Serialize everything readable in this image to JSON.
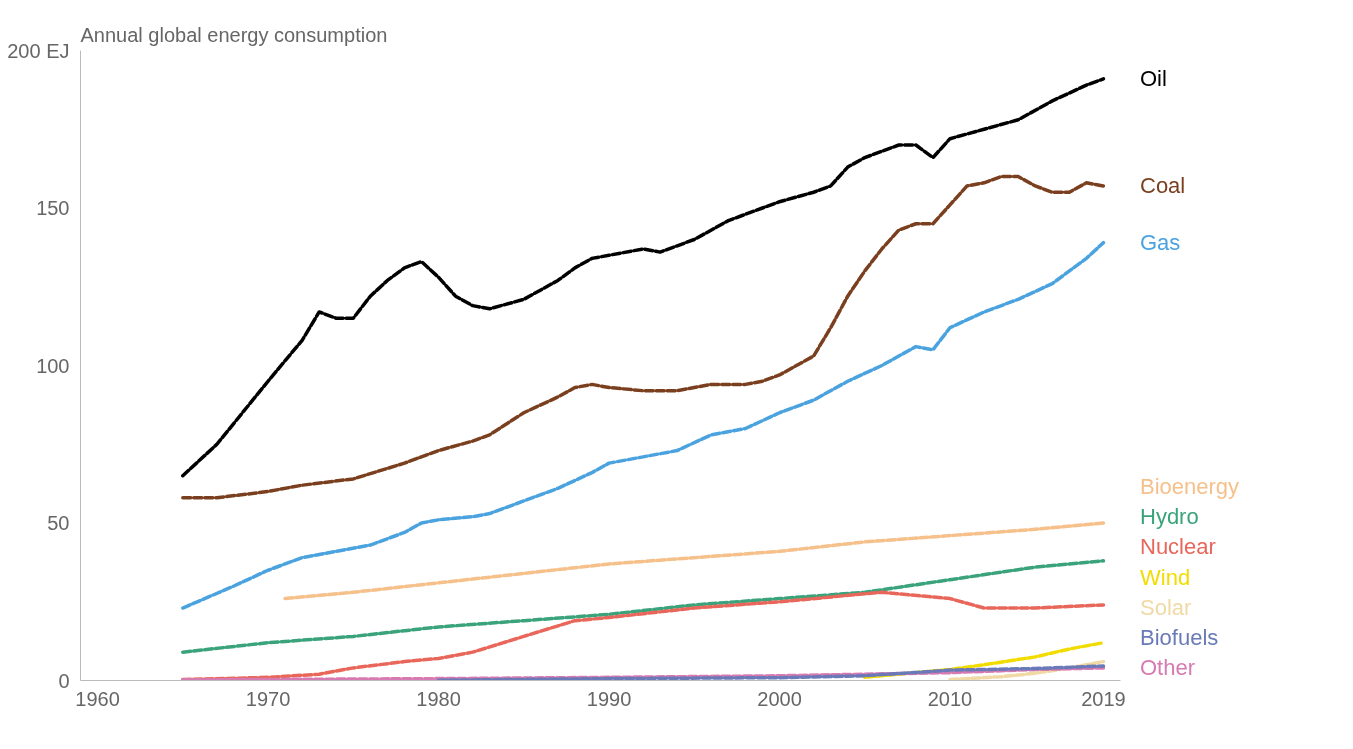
{
  "chart_data": {
    "type": "line",
    "title": "Annual global energy consumption",
    "xlim": [
      1959,
      2020
    ],
    "xticks": [
      1960,
      1970,
      1980,
      1990,
      2000,
      2010,
      2019
    ],
    "ylim": [
      0,
      200
    ],
    "yticks": [
      0,
      50,
      100,
      150,
      {
        "value": 200,
        "label": "200 EJ"
      }
    ],
    "grid": false,
    "line_style": "dashed",
    "marker": "none",
    "series": [
      {
        "name": "Oil",
        "color": "#000000",
        "x": [
          1965,
          1967,
          1970,
          1972,
          1973,
          1974,
          1975,
          1976,
          1977,
          1978,
          1979,
          1980,
          1981,
          1982,
          1983,
          1985,
          1987,
          1988,
          1989,
          1990,
          1992,
          1993,
          1995,
          1997,
          1998,
          1999,
          2000,
          2002,
          2003,
          2004,
          2005,
          2007,
          2008,
          2009,
          2010,
          2012,
          2014,
          2016,
          2018,
          2019
        ],
        "values": [
          65,
          75,
          95,
          108,
          117,
          115,
          115,
          122,
          127,
          131,
          133,
          128,
          122,
          119,
          118,
          121,
          127,
          131,
          134,
          135,
          137,
          136,
          140,
          146,
          148,
          150,
          152,
          155,
          157,
          163,
          166,
          170,
          170,
          166,
          172,
          175,
          178,
          184,
          189,
          191
        ]
      },
      {
        "name": "Coal",
        "color": "#7a3f1e",
        "x": [
          1965,
          1967,
          1970,
          1972,
          1975,
          1978,
          1980,
          1982,
          1983,
          1985,
          1987,
          1988,
          1989,
          1990,
          1992,
          1994,
          1996,
          1998,
          1999,
          2000,
          2002,
          2003,
          2004,
          2005,
          2006,
          2007,
          2008,
          2009,
          2010,
          2011,
          2012,
          2013,
          2014,
          2015,
          2016,
          2017,
          2018,
          2019
        ],
        "values": [
          58,
          58,
          60,
          62,
          64,
          69,
          73,
          76,
          78,
          85,
          90,
          93,
          94,
          93,
          92,
          92,
          94,
          94,
          95,
          97,
          103,
          112,
          122,
          130,
          137,
          143,
          145,
          145,
          151,
          157,
          158,
          160,
          160,
          157,
          155,
          155,
          158,
          157
        ]
      },
      {
        "name": "Gas",
        "color": "#4aa3df",
        "x": [
          1965,
          1968,
          1970,
          1972,
          1974,
          1976,
          1978,
          1979,
          1980,
          1982,
          1983,
          1985,
          1987,
          1989,
          1990,
          1992,
          1994,
          1996,
          1998,
          2000,
          2002,
          2004,
          2006,
          2008,
          2009,
          2010,
          2012,
          2014,
          2016,
          2018,
          2019
        ],
        "values": [
          23,
          30,
          35,
          39,
          41,
          43,
          47,
          50,
          51,
          52,
          53,
          57,
          61,
          66,
          69,
          71,
          73,
          78,
          80,
          85,
          89,
          95,
          100,
          106,
          105,
          112,
          117,
          121,
          126,
          134,
          139
        ]
      },
      {
        "name": "Bioenergy",
        "color": "#f5c08a",
        "x": [
          1971,
          1975,
          1980,
          1985,
          1990,
          1995,
          2000,
          2005,
          2010,
          2015,
          2019
        ],
        "values": [
          26,
          28,
          31,
          34,
          37,
          39,
          41,
          44,
          46,
          48,
          50
        ]
      },
      {
        "name": "Hydro",
        "color": "#3aa37c",
        "x": [
          1965,
          1970,
          1975,
          1980,
          1985,
          1990,
          1995,
          2000,
          2005,
          2010,
          2015,
          2019
        ],
        "values": [
          9,
          12,
          14,
          17,
          19,
          21,
          24,
          26,
          28,
          32,
          36,
          38
        ]
      },
      {
        "name": "Nuclear",
        "color": "#e8675a",
        "x": [
          1965,
          1970,
          1973,
          1975,
          1978,
          1980,
          1982,
          1985,
          1988,
          1990,
          1995,
          2000,
          2006,
          2010,
          2012,
          2015,
          2019
        ],
        "values": [
          0.3,
          1,
          2,
          4,
          6,
          7,
          9,
          14,
          19,
          20,
          23,
          25,
          28,
          26,
          23,
          23,
          24
        ]
      },
      {
        "name": "Wind",
        "color": "#f2dc00",
        "x": [
          2005,
          2010,
          2012,
          2015,
          2017,
          2019
        ],
        "values": [
          1,
          3.5,
          5,
          7.5,
          10,
          12
        ]
      },
      {
        "name": "Solar",
        "color": "#f0d9a5",
        "x": [
          2010,
          2013,
          2015,
          2017,
          2019
        ],
        "values": [
          0.3,
          1.2,
          2.3,
          4,
          6
        ]
      },
      {
        "name": "Other",
        "color": "#d67ab1",
        "x": [
          1965,
          1980,
          1990,
          2000,
          2010,
          2015,
          2019
        ],
        "values": [
          0.2,
          0.6,
          1,
          1.5,
          2.5,
          3.5,
          4
        ]
      },
      {
        "name": "Biofuels",
        "color": "#6a7ab8",
        "x": [
          1980,
          1990,
          2000,
          2005,
          2010,
          2015,
          2019
        ],
        "values": [
          0.1,
          0.6,
          0.9,
          1.5,
          3.3,
          3.8,
          4.6
        ]
      }
    ]
  }
}
